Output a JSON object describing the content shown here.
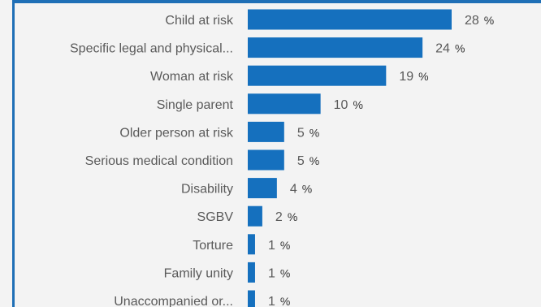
{
  "chart_data": {
    "type": "bar",
    "orientation": "horizontal",
    "categories": [
      "Child at risk",
      "Specific legal and physical...",
      "Woman at risk",
      "Single parent",
      "Older person at risk",
      "Serious medical condition",
      "Disability",
      "SGBV",
      "Torture",
      "Family unity",
      "Unaccompanied or..."
    ],
    "values": [
      28,
      24,
      19,
      10,
      5,
      5,
      4,
      2,
      1,
      1,
      1
    ],
    "value_labels": [
      "28",
      "24",
      "19",
      "10",
      "5",
      "5",
      "4",
      "2",
      "1",
      "1",
      "1"
    ],
    "unit": "%",
    "title": "",
    "xlabel": "",
    "ylabel": "",
    "xlim": [
      0,
      28
    ],
    "grid": false,
    "bar_color": "#1570be"
  }
}
